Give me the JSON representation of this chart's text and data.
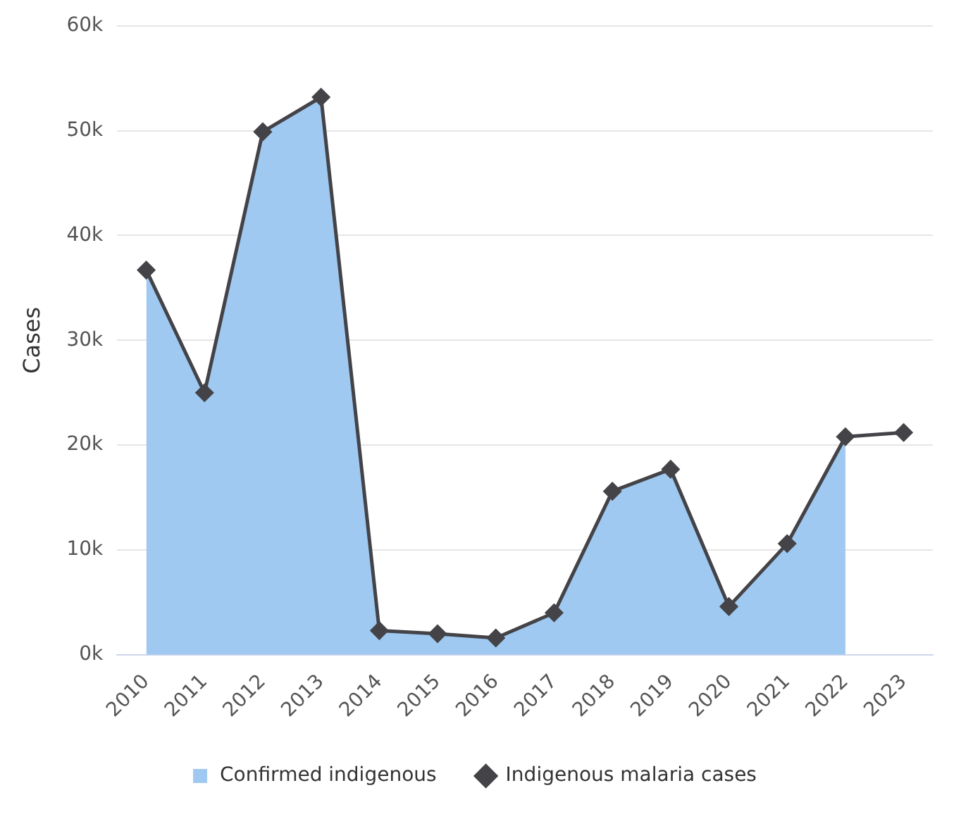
{
  "chart_data": {
    "type": "line",
    "ylabel": "Cases",
    "categories": [
      "2010",
      "2011",
      "2012",
      "2013",
      "2014",
      "2015",
      "2016",
      "2017",
      "2018",
      "2019",
      "2020",
      "2021",
      "2022",
      "2023"
    ],
    "series": [
      {
        "name": "Confirmed indigenous",
        "type": "area",
        "color": "#9fc9f0",
        "values": [
          36700,
          25000,
          49900,
          53200,
          2300,
          2000,
          1600,
          4000,
          15600,
          17700,
          4600,
          10600,
          20800,
          null
        ]
      },
      {
        "name": "Indigenous malaria cases",
        "color": "#434348",
        "marker": "diamond",
        "values": [
          36700,
          25000,
          49900,
          53200,
          2300,
          2000,
          1600,
          4000,
          15600,
          17700,
          4600,
          10600,
          20800,
          21200
        ]
      }
    ],
    "ylim": [
      0,
      60000
    ],
    "yticks": [
      {
        "value": 0,
        "label": "0k"
      },
      {
        "value": 10000,
        "label": "10k"
      },
      {
        "value": 20000,
        "label": "20k"
      },
      {
        "value": 30000,
        "label": "30k"
      },
      {
        "value": 40000,
        "label": "40k"
      },
      {
        "value": 50000,
        "label": "50k"
      },
      {
        "value": 60000,
        "label": "60k"
      }
    ],
    "grid": "y",
    "legend": "bottom"
  }
}
